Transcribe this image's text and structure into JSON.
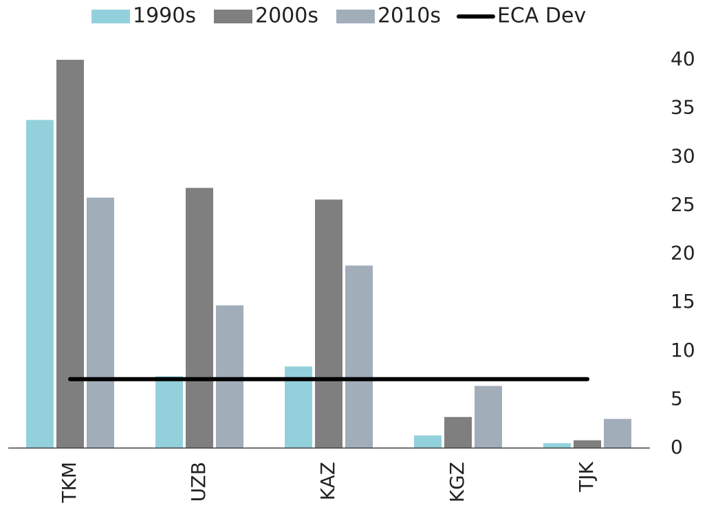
{
  "chart_data": {
    "type": "bar",
    "categories": [
      "TKM",
      "UZB",
      "KAZ",
      "KGZ",
      "TJK"
    ],
    "series": [
      {
        "name": "1990s",
        "color": "#92d1dc",
        "values": [
          33.8,
          7.4,
          8.4,
          1.3,
          0.5
        ]
      },
      {
        "name": "2000s",
        "color": "#7f7f7f",
        "values": [
          40,
          26.8,
          25.6,
          3.2,
          0.8
        ]
      },
      {
        "name": "2010s",
        "color": "#a2adba",
        "values": [
          25.8,
          14.7,
          18.8,
          6.4,
          3.0
        ]
      },
      {
        "name": "ECA Dev",
        "type": "line",
        "color": "#000000",
        "values": [
          7.1,
          7.1,
          7.1,
          7.1,
          7.1
        ]
      }
    ],
    "ylim": [
      0,
      40
    ],
    "yticks": [
      0,
      5,
      10,
      15,
      20,
      25,
      30,
      35,
      40
    ],
    "y_axis_side": "right",
    "legend": "top"
  }
}
